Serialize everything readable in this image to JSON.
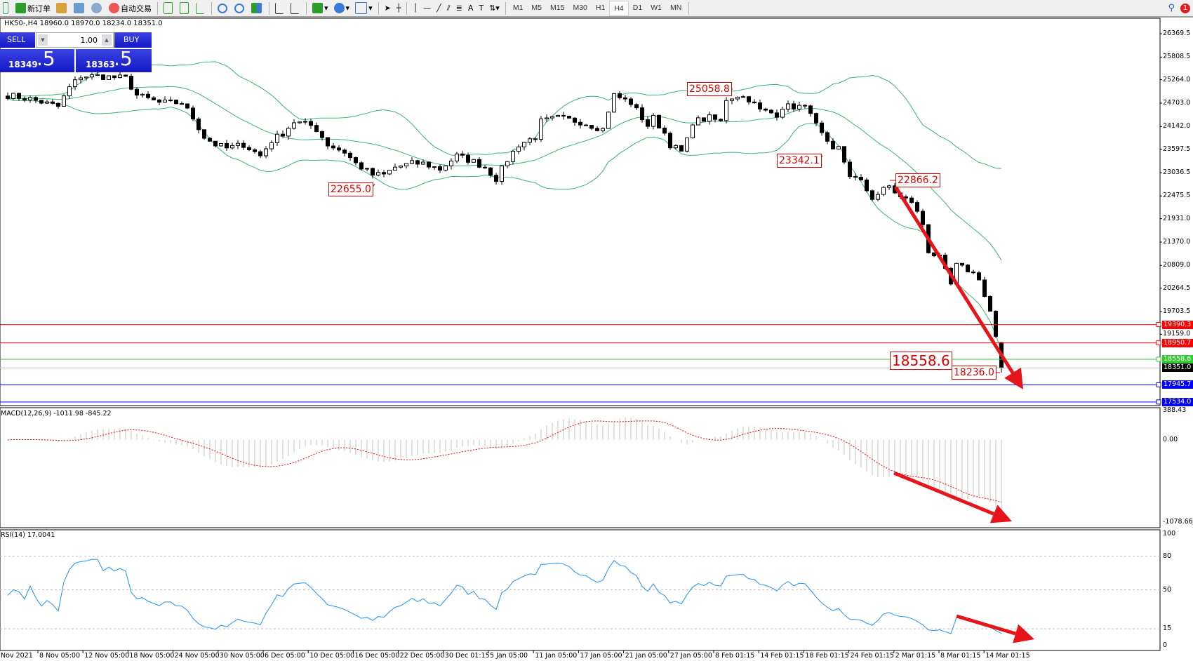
{
  "toolbar": {
    "new_order": "新订单",
    "auto_trading": "自动交易",
    "timeframes": [
      "M1",
      "M5",
      "M15",
      "M30",
      "H1",
      "H4",
      "D1",
      "W1",
      "MN"
    ],
    "active_timeframe": "H4",
    "notification_count": "1"
  },
  "chart": {
    "header": "HK50-,H4  18960.0 18970.0 18234.0 18351.0",
    "last_candle": {
      "open": 18960.0,
      "high": 18970.0,
      "low": 18234.0,
      "close": 18351.0
    }
  },
  "trade_panel": {
    "sell_label": "SELL",
    "buy_label": "BUY",
    "volume": "1.00",
    "sell_price_main": "18349",
    "sell_price_frac": ".5",
    "buy_price_main": "18363",
    "buy_price_frac": ".5"
  },
  "price_axis": {
    "ticks": [
      "26369.5",
      "25808.5",
      "25264.0",
      "24703.0",
      "24142.0",
      "23597.5",
      "23036.5",
      "22475.5",
      "21931.0",
      "21370.0",
      "20809.0",
      "20264.5",
      "19703.5",
      "19159.0"
    ]
  },
  "levels": [
    {
      "value": "19390.3",
      "color": "#ff0000"
    },
    {
      "value": "18950.7",
      "color": "#ff0000"
    },
    {
      "value": "18558.6",
      "color": "#32cd32"
    },
    {
      "value": "18351.0",
      "color": "#000000",
      "line_color": "#c0c0c0"
    },
    {
      "value": "17945.7",
      "color": "#0000ff"
    },
    {
      "value": "17534.0",
      "color": "#0000ff"
    }
  ],
  "annotations": [
    "25058.8",
    "22655.0",
    "23342.1",
    "22866.2",
    "18558.6",
    "18236.0"
  ],
  "price_path": [
    [
      0,
      24894
    ],
    [
      4,
      24803
    ],
    [
      9,
      24620
    ],
    [
      11,
      25075
    ],
    [
      13,
      25350
    ],
    [
      16,
      25350
    ],
    [
      21,
      25300
    ],
    [
      23,
      24894
    ],
    [
      27,
      24712
    ],
    [
      31,
      24712
    ],
    [
      33,
      24350
    ],
    [
      35,
      23893
    ],
    [
      37,
      23710
    ],
    [
      39,
      23620
    ],
    [
      42,
      23710
    ],
    [
      45,
      23438
    ],
    [
      47,
      23802
    ],
    [
      49,
      23984
    ],
    [
      51,
      24257
    ],
    [
      54,
      24166
    ],
    [
      55,
      24075
    ],
    [
      57,
      23710
    ],
    [
      60,
      23530
    ],
    [
      62,
      23255
    ],
    [
      65,
      22982
    ],
    [
      67,
      22982
    ],
    [
      69,
      23165
    ],
    [
      72,
      23255
    ],
    [
      74,
      23255
    ],
    [
      77,
      23120
    ],
    [
      80,
      23438
    ],
    [
      83,
      23300
    ],
    [
      85,
      23165
    ],
    [
      87,
      22891
    ],
    [
      89,
      23347
    ],
    [
      91,
      23710
    ],
    [
      94,
      23893
    ],
    [
      95,
      24257
    ],
    [
      98,
      24348
    ],
    [
      102,
      24257
    ],
    [
      106,
      24075
    ],
    [
      107,
      24530
    ],
    [
      108,
      24894
    ],
    [
      111,
      24712
    ],
    [
      114,
      24166
    ],
    [
      115,
      24348
    ],
    [
      117,
      23984
    ],
    [
      118,
      23710
    ],
    [
      120,
      23530
    ],
    [
      121,
      23802
    ],
    [
      122,
      24257
    ],
    [
      125,
      24348
    ],
    [
      127,
      24257
    ],
    [
      128,
      24803
    ],
    [
      130,
      24894
    ],
    [
      132,
      24803
    ],
    [
      134,
      24530
    ],
    [
      137,
      24440
    ],
    [
      138,
      24620
    ],
    [
      141,
      24620
    ],
    [
      143,
      24530
    ],
    [
      144,
      24166
    ],
    [
      146,
      23710
    ],
    [
      147,
      23530
    ],
    [
      148,
      23620
    ],
    [
      150,
      22982
    ],
    [
      152,
      22800
    ],
    [
      154,
      22436
    ],
    [
      157,
      22710
    ],
    [
      159,
      22436
    ],
    [
      161,
      22345
    ],
    [
      163,
      21800
    ],
    [
      164,
      21161
    ],
    [
      166,
      20980
    ],
    [
      168,
      20342
    ],
    [
      169,
      20800
    ],
    [
      171,
      20700
    ],
    [
      173,
      20520
    ],
    [
      174,
      20064
    ],
    [
      175,
      19703
    ],
    [
      176,
      19066
    ],
    [
      177,
      18351
    ]
  ],
  "macd": {
    "label": "MACD(12,26,9) -1011.98 -845.22",
    "ticks": [
      "388.43",
      "0.00",
      "-1078.66"
    ],
    "hist_color": "#c0c0c0",
    "signal_color": "#ff0000"
  },
  "rsi": {
    "label": "RSI(14) 17.0041",
    "ticks": [
      "100",
      "80",
      "50",
      "15",
      "0"
    ],
    "color": "#1e90ff"
  },
  "time_axis": [
    "Nov 2021",
    "8 Nov 05:00",
    "12 Nov 05:00",
    "18 Nov 05:00",
    "24 Nov 05:00",
    "30 Nov 05:00",
    "6 Dec 05:00",
    "10 Dec 05:00",
    "16 Dec 05:00",
    "22 Dec 05:00",
    "30 Dec 01:15",
    "5 Jan 05:00",
    "11 Jan 05:00",
    "17 Jan 05:00",
    "21 Jan 05:00",
    "27 Jan 05:00",
    "8 Feb 01:15",
    "14 Feb 01:15",
    "18 Feb 01:15",
    "24 Feb 01:15",
    "2 Mar 01:15",
    "8 Mar 01:15",
    "14 Mar 01:15"
  ],
  "colors": {
    "bands": "#3cb371",
    "arrow": "#e8141c",
    "panel": "#1a1fd0"
  }
}
